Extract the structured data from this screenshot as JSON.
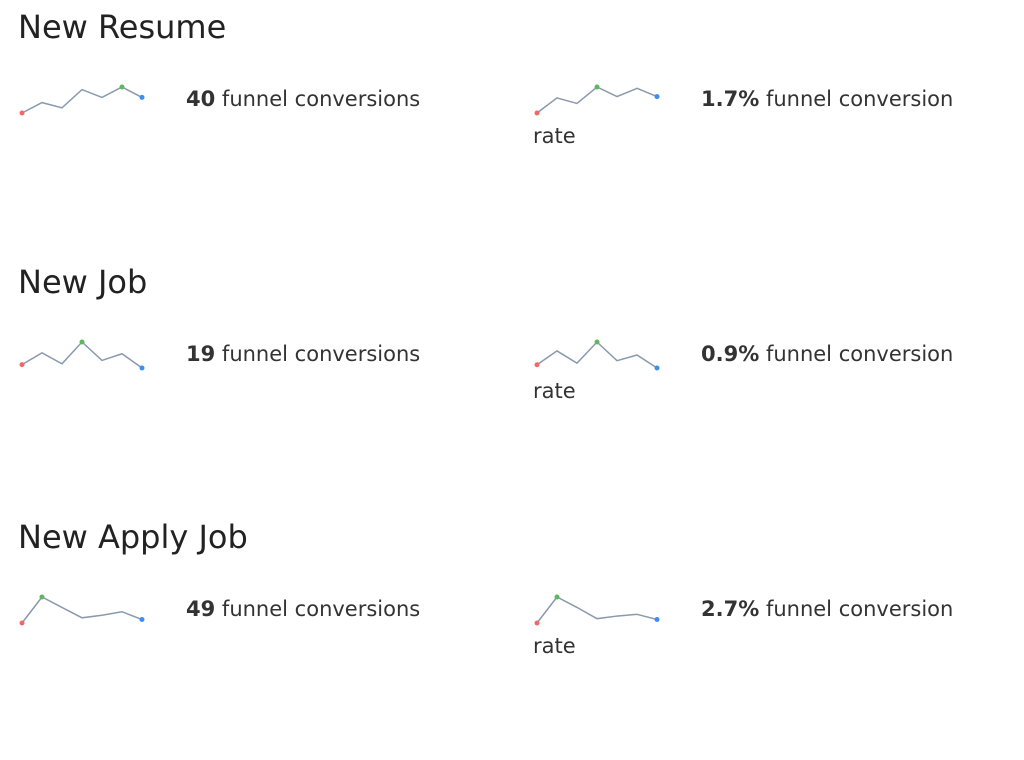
{
  "colors": {
    "line": "#8a99ad",
    "first": "#f2686a",
    "max": "#5cb85c",
    "last": "#3d8ef0"
  },
  "sections": [
    {
      "title": "New Resume",
      "count": {
        "value": "40",
        "label": "funnel conversions",
        "sparkline": [
          10,
          18,
          14,
          28,
          22,
          30,
          22
        ]
      },
      "rate": {
        "value": "1.7%",
        "label": "funnel conversion rate",
        "sparkline": [
          10,
          21,
          17,
          29,
          22,
          28,
          22
        ]
      }
    },
    {
      "title": "New Job",
      "count": {
        "value": "19",
        "label": "funnel conversions",
        "sparkline": [
          8,
          22,
          9,
          35,
          13,
          21,
          4
        ]
      },
      "rate": {
        "value": "0.9%",
        "label": "funnel conversion rate",
        "sparkline": [
          8,
          25,
          10,
          36,
          13,
          20,
          4
        ]
      }
    },
    {
      "title": "New Apply Job",
      "count": {
        "value": "49",
        "label": "funnel conversions",
        "sparkline": [
          10,
          40,
          28,
          16,
          19,
          23,
          14
        ]
      },
      "rate": {
        "value": "2.7%",
        "label": "funnel conversion rate",
        "sparkline": [
          10,
          40,
          28,
          15,
          18,
          20,
          14
        ]
      }
    }
  ]
}
